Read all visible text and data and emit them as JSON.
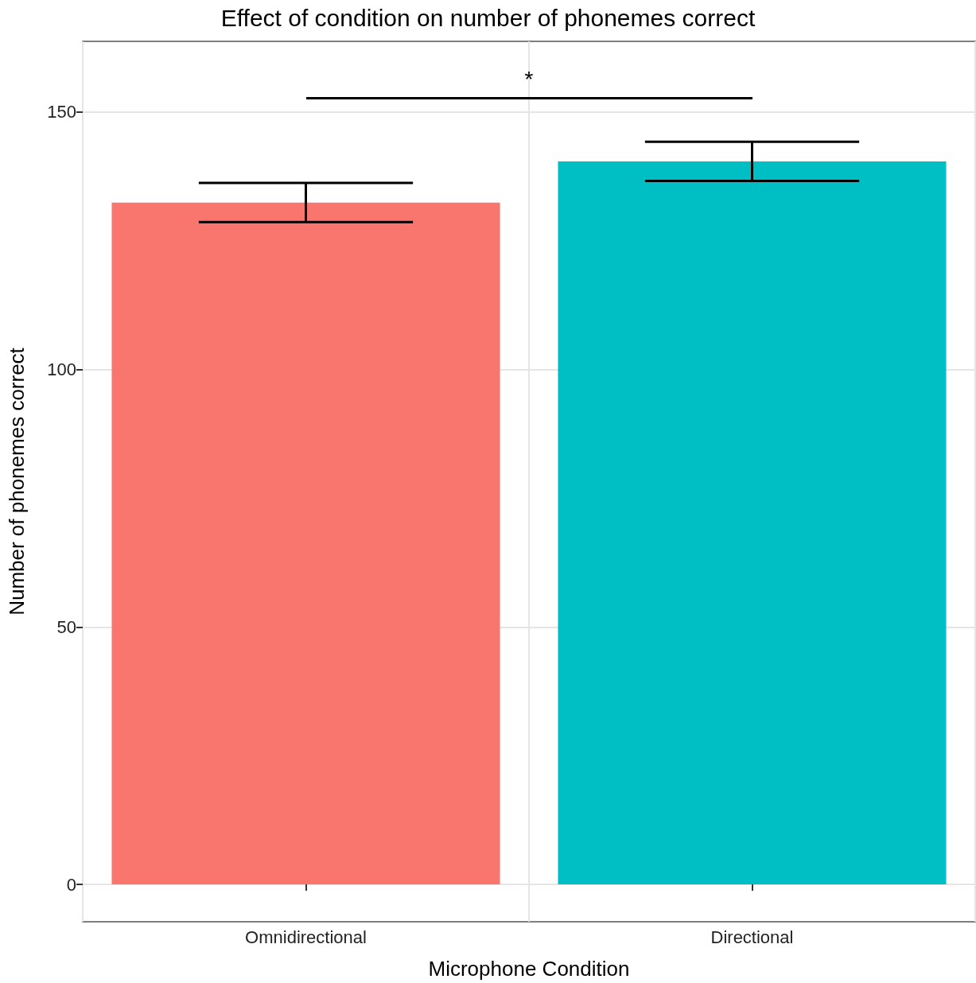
{
  "chart_data": {
    "type": "bar",
    "title": "Effect of condition on number of phonemes correct",
    "xlabel": "Microphone Condition",
    "ylabel": "Number of phonemes correct",
    "categories": [
      "Omnidirectional",
      "Directional"
    ],
    "values": [
      132.4,
      140.4
    ],
    "colors": [
      "#f8766d",
      "#00bfc4"
    ],
    "errors": [
      3.8,
      3.8
    ],
    "ylim": [
      -7.25,
      163.7
    ],
    "yticks": [
      0,
      50,
      100,
      150
    ],
    "grid": true,
    "annotations": [
      "*"
    ]
  }
}
